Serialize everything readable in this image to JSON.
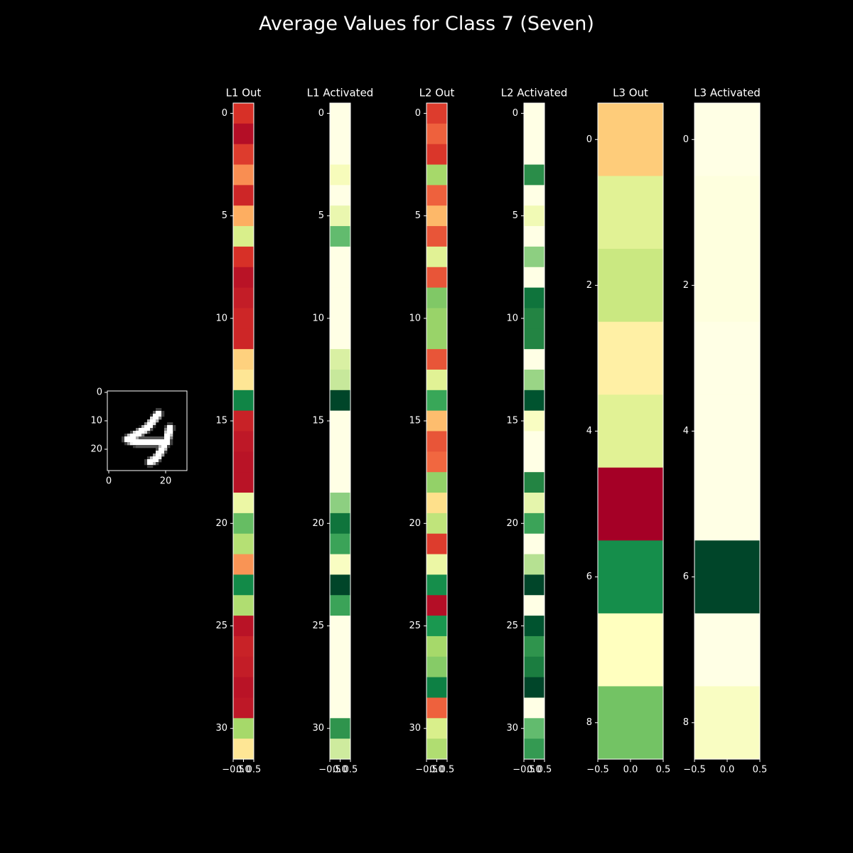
{
  "page": {
    "title": "Average Values for Class 7 (Seven)"
  },
  "chart_data": [
    {
      "type": "heatmap",
      "title": "",
      "content": "handwritten digit image (grayscale, 28x28)",
      "xticks": [
        0,
        20
      ],
      "yticks": [
        0,
        10,
        20
      ],
      "xlim": [
        -0.5,
        27.5
      ],
      "ylim": [
        27.5,
        -0.5
      ]
    },
    {
      "type": "heatmap",
      "title": "L1 Out",
      "colormap": "RdYlGn",
      "values": [
        0.1,
        0.03,
        0.12,
        0.25,
        0.08,
        0.3,
        0.6,
        0.1,
        0.04,
        0.06,
        0.08,
        0.08,
        0.37,
        0.42,
        0.94,
        0.07,
        0.05,
        0.04,
        0.04,
        0.55,
        0.8,
        0.67,
        0.26,
        0.93,
        0.68,
        0.04,
        0.07,
        0.06,
        0.04,
        0.05,
        0.7,
        0.42
      ],
      "xticks": [
        -0.5,
        0.0,
        0.5
      ],
      "xtick_labels": [
        "−0.5",
        "0.0",
        "0.5"
      ],
      "yticks": [
        0,
        5,
        10,
        15,
        20,
        25,
        30
      ]
    },
    {
      "type": "heatmap",
      "title": "L1 Activated",
      "colormap": "YlGn",
      "values": [
        0.0,
        0.0,
        0.0,
        0.12,
        0.0,
        0.18,
        0.55,
        0.0,
        0.0,
        0.0,
        0.0,
        0.0,
        0.25,
        0.3,
        1.0,
        0.0,
        0.0,
        0.0,
        0.0,
        0.45,
        0.82,
        0.65,
        0.1,
        1.0,
        0.65,
        0.0,
        0.0,
        0.0,
        0.0,
        0.0,
        0.7,
        0.28
      ],
      "xticks": [
        -0.5,
        0.0,
        0.5
      ],
      "xtick_labels": [
        "−0.5",
        "0.0",
        "0.5"
      ],
      "yticks": [
        0,
        5,
        10,
        15,
        20,
        25,
        30
      ]
    },
    {
      "type": "heatmap",
      "title": "L2 Out",
      "colormap": "RdYlGn",
      "values": [
        0.12,
        0.18,
        0.11,
        0.7,
        0.18,
        0.32,
        0.16,
        0.58,
        0.16,
        0.76,
        0.72,
        0.72,
        0.16,
        0.58,
        0.86,
        0.33,
        0.16,
        0.19,
        0.73,
        0.4,
        0.65,
        0.12,
        0.55,
        0.92,
        0.03,
        0.9,
        0.7,
        0.75,
        0.95,
        0.18,
        0.6,
        0.68
      ],
      "xticks": [
        -0.5,
        0.0,
        0.5
      ],
      "xtick_labels": [
        "−0.5",
        "0.0",
        "0.5"
      ],
      "yticks": [
        0,
        5,
        10,
        15,
        20,
        25,
        30
      ]
    },
    {
      "type": "heatmap",
      "title": "L2 Activated",
      "colormap": "YlGn",
      "values": [
        0.0,
        0.0,
        0.0,
        0.72,
        0.0,
        0.15,
        0.0,
        0.45,
        0.0,
        0.82,
        0.75,
        0.75,
        0.0,
        0.42,
        0.95,
        0.1,
        0.0,
        0.0,
        0.75,
        0.2,
        0.65,
        0.0,
        0.35,
        1.0,
        0.0,
        0.95,
        0.7,
        0.78,
        1.0,
        0.0,
        0.55,
        0.68
      ],
      "xticks": [
        -0.5,
        0.0,
        0.5
      ],
      "xtick_labels": [
        "−0.5",
        "0.0",
        "0.5"
      ],
      "yticks": [
        0,
        5,
        10,
        15,
        20,
        25,
        30
      ]
    },
    {
      "type": "heatmap",
      "title": "L3 Out",
      "colormap": "RdYlGn",
      "values": [
        0.36,
        0.58,
        0.63,
        0.45,
        0.58,
        0.0,
        0.92,
        0.5,
        0.78
      ],
      "xticks": [
        -0.5,
        0.0,
        0.5
      ],
      "xtick_labels": [
        "−0.5",
        "0.0",
        "0.5"
      ],
      "yticks": [
        0,
        2,
        4,
        6,
        8
      ]
    },
    {
      "type": "heatmap",
      "title": "L3 Activated",
      "colormap": "YlGn",
      "values": [
        0.0,
        0.02,
        0.02,
        0.0,
        0.0,
        0.0,
        1.0,
        0.0,
        0.1
      ],
      "xticks": [
        -0.5,
        0.0,
        0.5
      ],
      "xtick_labels": [
        "−0.5",
        "0.0",
        "0.5"
      ],
      "yticks": [
        0,
        2,
        4,
        6,
        8
      ]
    }
  ]
}
